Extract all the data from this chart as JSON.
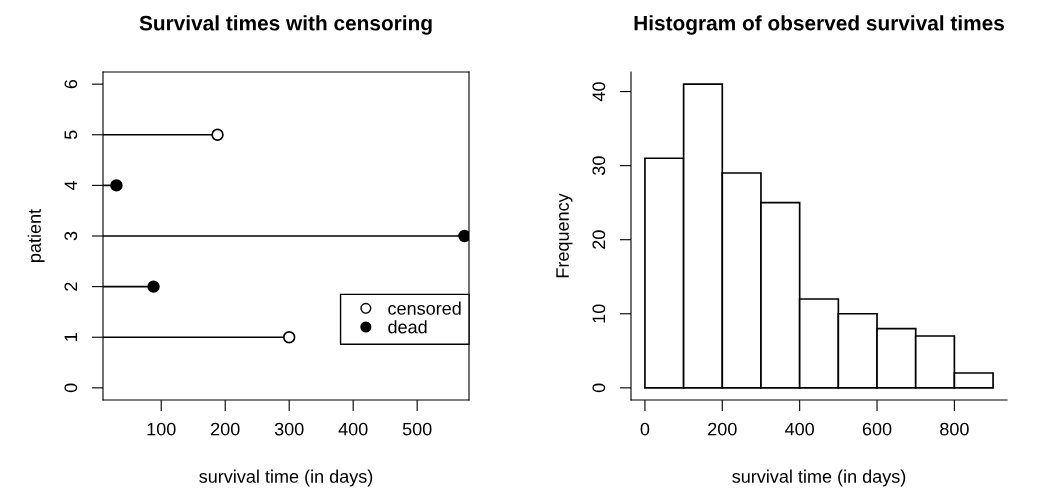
{
  "chart_data": [
    {
      "type": "lollipop",
      "orientation": "horizontal",
      "title": "Survival times with censoring",
      "xlabel": "survival time (in days)",
      "ylabel": "patient",
      "series": [
        {
          "name": "censored",
          "color": "#ffffff",
          "marker": "circle",
          "x": [
            1,
            5
          ],
          "values": [
            300,
            188
          ]
        },
        {
          "name": "dead",
          "color": "#000000",
          "marker": "circle",
          "x": [
            2,
            3,
            4
          ],
          "values": [
            88,
            574,
            30
          ]
        }
      ],
      "xlim": [
        9,
        581
      ],
      "xticks": [
        100,
        200,
        300,
        400,
        500
      ],
      "ylim": [
        -0.24,
        6.24
      ],
      "yticks": [
        0,
        1,
        2,
        3,
        4,
        5,
        6
      ],
      "legend": "lower right"
    },
    {
      "type": "histogram",
      "title": "Histogram of observed survival times",
      "xlabel": "survival time (in days)",
      "ylabel": "Frequency",
      "bins": [
        0,
        100,
        200,
        300,
        400,
        500,
        600,
        700,
        800,
        900
      ],
      "values": [
        31,
        41,
        29,
        25,
        12,
        10,
        8,
        7,
        2
      ],
      "color": "#ffffff",
      "xlim": [
        -36,
        936
      ],
      "xticks": [
        0,
        200,
        400,
        600,
        800
      ],
      "ylim": [
        -1.64,
        42.64
      ],
      "yticks": [
        0,
        10,
        20,
        30,
        40
      ],
      "grid": false,
      "legend": false
    }
  ]
}
